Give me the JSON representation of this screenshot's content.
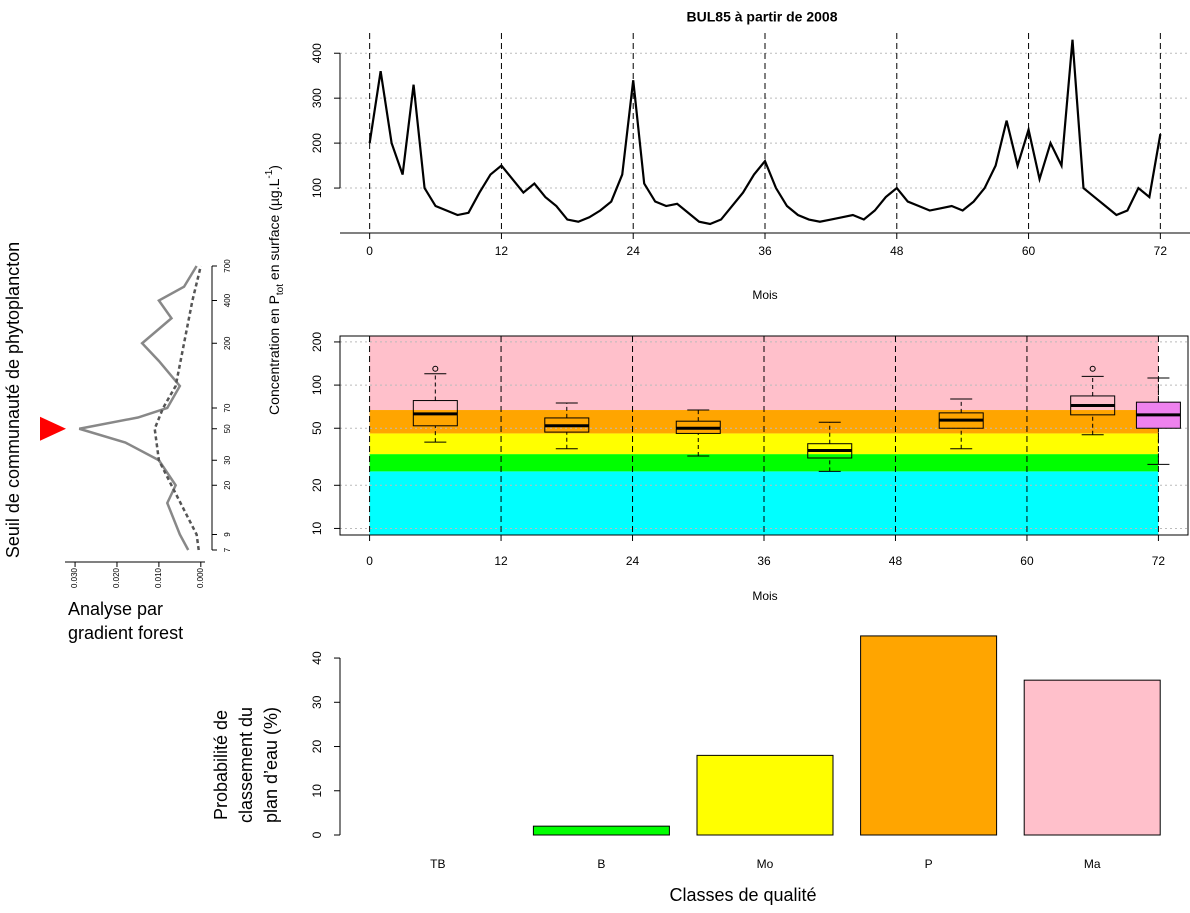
{
  "chart_data": [
    {
      "type": "line",
      "title": "BUL85 à partir de 2008",
      "xlabel": "Mois",
      "ylabel": [
        "Concentration en P",
        "tot",
        " en surface (µg.L",
        "-1",
        ")"
      ],
      "x": [
        0,
        1,
        2,
        3,
        4,
        5,
        6,
        7,
        8,
        9,
        10,
        11,
        12,
        13,
        14,
        15,
        16,
        17,
        18,
        19,
        20,
        21,
        22,
        23,
        24,
        25,
        26,
        27,
        28,
        29,
        30,
        31,
        32,
        33,
        34,
        35,
        36,
        37,
        38,
        39,
        40,
        41,
        42,
        43,
        44,
        45,
        46,
        47,
        48,
        49,
        50,
        51,
        52,
        53,
        54,
        55,
        56,
        57,
        58,
        59,
        60,
        61,
        62,
        63,
        64,
        65,
        66,
        67,
        68,
        69,
        70,
        71,
        72
      ],
      "series": [
        {
          "color": "#000000",
          "values": [
            200,
            360,
            200,
            130,
            330,
            100,
            60,
            50,
            40,
            45,
            90,
            130,
            150,
            120,
            90,
            110,
            80,
            60,
            30,
            25,
            35,
            50,
            70,
            130,
            340,
            110,
            70,
            60,
            65,
            45,
            25,
            20,
            30,
            60,
            90,
            130,
            160,
            100,
            60,
            40,
            30,
            25,
            30,
            35,
            40,
            30,
            50,
            80,
            100,
            70,
            60,
            50,
            55,
            60,
            50,
            70,
            100,
            150,
            250,
            150,
            230,
            120,
            200,
            150,
            430,
            100,
            80,
            60,
            40,
            50,
            100,
            80,
            220
          ]
        }
      ],
      "xlim": [
        -2.7,
        74.7
      ],
      "xticks": [
        0,
        12,
        24,
        36,
        48,
        60,
        72
      ],
      "ylim": [
        0,
        445
      ],
      "yticks": [
        100,
        200,
        300,
        400
      ],
      "grid": true
    },
    {
      "type": "box",
      "xlabel": "Mois",
      "ylog": true,
      "xlim": [
        -2.7,
        74.7
      ],
      "xticks": [
        0,
        12,
        24,
        36,
        48,
        60,
        72
      ],
      "ylim": [
        9,
        220
      ],
      "yticks": [
        10,
        20,
        50,
        100,
        200
      ],
      "grid": true,
      "bands": [
        {
          "from": 9,
          "to": 25,
          "color": "#00ffff"
        },
        {
          "from": 25,
          "to": 33,
          "color": "#00ff00"
        },
        {
          "from": 33,
          "to": 46,
          "color": "#ffff00"
        },
        {
          "from": 46,
          "to": 67,
          "color": "#ffa500"
        },
        {
          "from": 67,
          "to": 220,
          "color": "#ffc0cb"
        }
      ],
      "boxes": [
        {
          "x": 6,
          "min": 40,
          "q1": 52,
          "median": 63,
          "q3": 78,
          "max": 120,
          "outliers": [
            130
          ],
          "color": "none"
        },
        {
          "x": 18,
          "min": 36,
          "q1": 47,
          "median": 52,
          "q3": 59,
          "max": 75,
          "outliers": [],
          "color": "none"
        },
        {
          "x": 30,
          "min": 32,
          "q1": 46,
          "median": 50,
          "q3": 56,
          "max": 67,
          "outliers": [],
          "color": "none"
        },
        {
          "x": 42,
          "min": 25,
          "q1": 31,
          "median": 35,
          "q3": 39,
          "max": 55,
          "outliers": [],
          "color": "none"
        },
        {
          "x": 54,
          "min": 36,
          "q1": 50,
          "median": 57,
          "q3": 64,
          "max": 80,
          "outliers": [],
          "color": "none"
        },
        {
          "x": 66,
          "min": 45,
          "q1": 62,
          "median": 72,
          "q3": 84,
          "max": 115,
          "outliers": [
            130
          ],
          "color": "none"
        },
        {
          "x": 72,
          "min": 28,
          "q1": 50,
          "median": 62,
          "q3": 76,
          "max": 112,
          "outliers": [],
          "color": "#ee82ee"
        }
      ]
    },
    {
      "type": "bar",
      "xlabel": "Classes de qualité",
      "ylabel": [
        "Probabilité de",
        "classement du",
        "plan d’eau (%)"
      ],
      "categories": [
        "TB",
        "B",
        "Mo",
        "P",
        "Ma"
      ],
      "values": [
        0,
        2,
        18,
        45,
        35
      ],
      "colors": [
        "#ffffff",
        "#00ff00",
        "#ffff00",
        "#ffa500",
        "#ffc0cb"
      ],
      "ylim": [
        0,
        46
      ],
      "yticks": [
        0,
        10,
        20,
        30,
        40
      ]
    },
    {
      "type": "density",
      "ylabel": "Seuil de communauté de phytoplancton",
      "caption": [
        "Analyse par",
        "gradient forest"
      ],
      "ylog": true,
      "ylim": [
        7,
        700
      ],
      "yticks": [
        7,
        9,
        20,
        30,
        50,
        70,
        200,
        400,
        700
      ],
      "xlim": [
        0.0324,
        -0.001
      ],
      "xticks": [
        {
          "value": 0.03,
          "label": "0.030"
        },
        {
          "value": 0.02,
          "label": "0.020"
        },
        {
          "value": 0.01,
          "label": "0.010"
        },
        {
          "value": 0,
          "label": "0.000"
        }
      ],
      "marker": 50,
      "marker_color": "#ff0000",
      "series": [
        {
          "color": "#888888",
          "dash": false,
          "y": [
            7,
            9,
            15,
            20,
            30,
            40,
            50,
            60,
            70,
            100,
            150,
            200,
            300,
            400,
            500,
            700
          ],
          "values": [
            0.003,
            0.005,
            0.008,
            0.006,
            0.01,
            0.018,
            0.029,
            0.015,
            0.008,
            0.005,
            0.01,
            0.014,
            0.007,
            0.01,
            0.004,
            0.001
          ]
        },
        {
          "color": "#555555",
          "dash": true,
          "y": [
            7,
            9,
            20,
            30,
            50,
            70,
            100,
            200,
            400,
            700
          ],
          "values": [
            0.0005,
            0.001,
            0.007,
            0.01,
            0.011,
            0.009,
            0.006,
            0.004,
            0.002,
            0
          ]
        }
      ]
    }
  ]
}
